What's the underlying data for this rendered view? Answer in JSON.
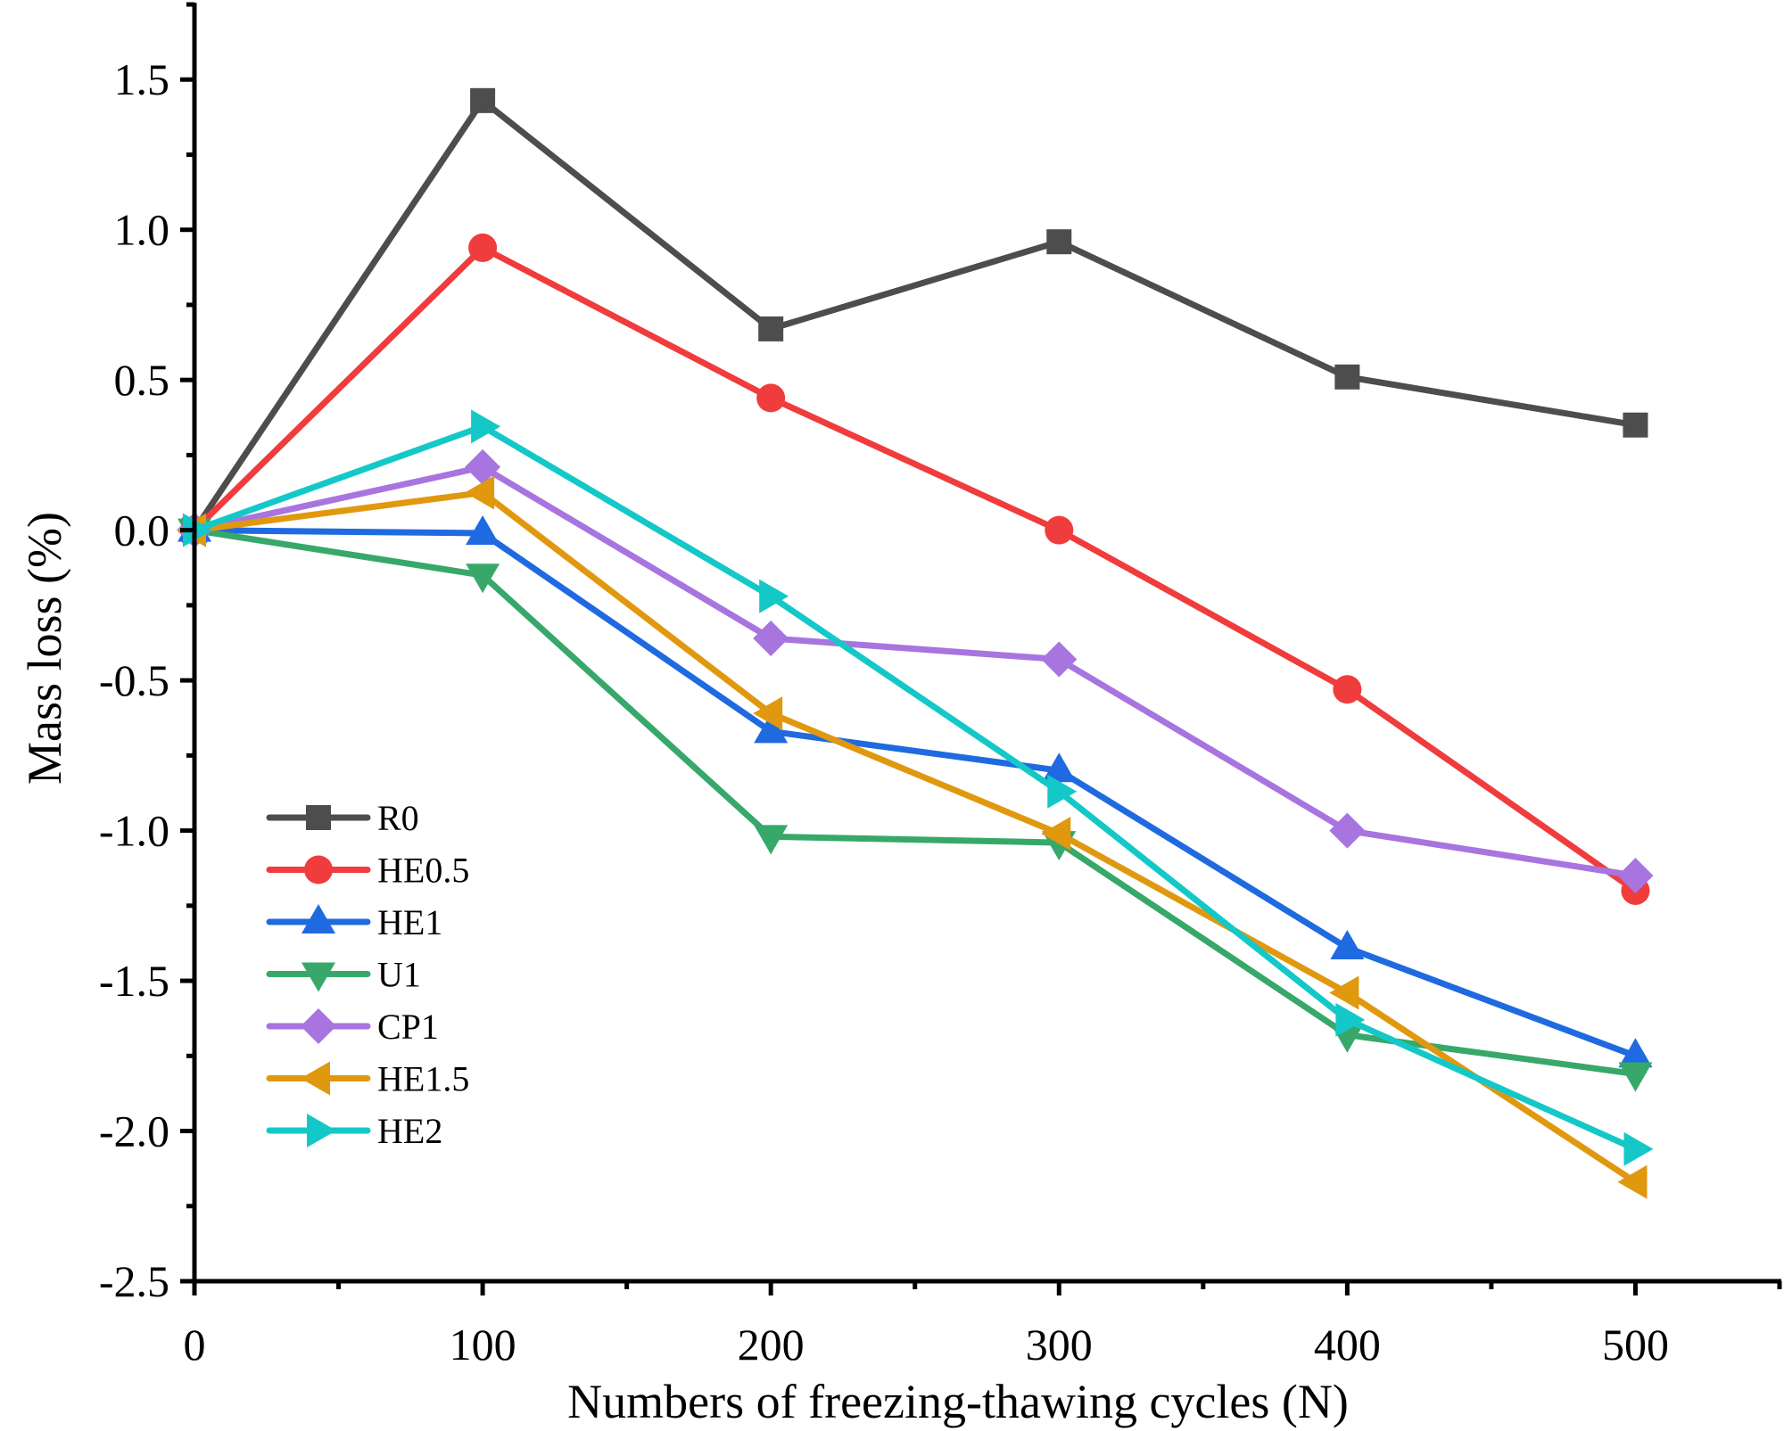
{
  "chart_data": {
    "type": "line",
    "title": "",
    "xlabel": "Numbers of freezing-thawing cycles (N)",
    "ylabel": "Mass loss (%)",
    "xlim": [
      0,
      550
    ],
    "ylim": [
      -2.5,
      1.75
    ],
    "xticks": [
      0,
      100,
      200,
      300,
      400,
      500
    ],
    "xtick_labels": [
      "0",
      "100",
      "200",
      "300",
      "400",
      "500"
    ],
    "yticks": [
      -2.5,
      -2.0,
      -1.5,
      -1.0,
      -0.5,
      0.0,
      0.5,
      1.0,
      1.5
    ],
    "ytick_labels": [
      "-2.5",
      "-2.0",
      "-1.5",
      "-1.0",
      "-0.5",
      "0.0",
      "0.5",
      "1.0",
      "1.5"
    ],
    "grid": false,
    "legend_position": "bottom-left",
    "x": [
      0,
      100,
      200,
      300,
      400,
      500
    ],
    "series": [
      {
        "name": "R0",
        "marker": "square",
        "color": "#4d4d4d",
        "values": [
          0.0,
          1.43,
          0.67,
          0.96,
          0.51,
          0.35
        ]
      },
      {
        "name": "HE0.5",
        "marker": "circle",
        "color": "#f03c3c",
        "values": [
          0.0,
          0.94,
          0.44,
          0.0,
          -0.53,
          -1.2
        ]
      },
      {
        "name": "HE1",
        "marker": "triangle-up",
        "color": "#1f6ae0",
        "values": [
          0.0,
          -0.01,
          -0.67,
          -0.8,
          -1.39,
          -1.75
        ]
      },
      {
        "name": "U1",
        "marker": "triangle-down",
        "color": "#37a86a",
        "values": [
          0.0,
          -0.15,
          -1.02,
          -1.04,
          -1.68,
          -1.81
        ]
      },
      {
        "name": "CP1",
        "marker": "diamond",
        "color": "#a874e0",
        "values": [
          0.0,
          0.21,
          -0.36,
          -0.43,
          -1.0,
          -1.15
        ]
      },
      {
        "name": "HE1.5",
        "marker": "triangle-left",
        "color": "#e0980f",
        "values": [
          0.0,
          0.125,
          -0.61,
          -1.01,
          -1.54,
          -2.17
        ]
      },
      {
        "name": "HE2",
        "marker": "triangle-right",
        "color": "#14c8c8",
        "values": [
          0.0,
          0.345,
          -0.22,
          -0.87,
          -1.63,
          -2.06
        ]
      }
    ]
  }
}
